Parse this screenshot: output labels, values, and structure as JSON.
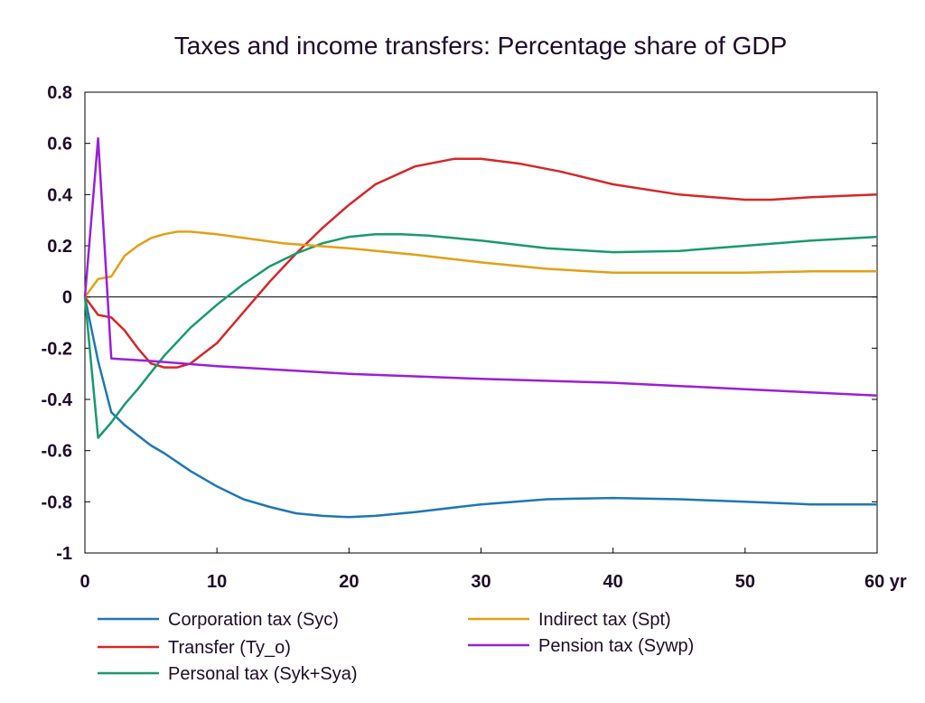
{
  "chart_data": {
    "type": "line",
    "title": "Taxes and income transfers: Percentage share of GDP",
    "xlabel": "",
    "ylabel": "",
    "xlim": [
      0,
      60
    ],
    "ylim": [
      -1,
      0.8
    ],
    "x_ticks": [
      0,
      10,
      20,
      30,
      40,
      50,
      60
    ],
    "x_tick_labels": [
      "0",
      "10",
      "20",
      "30",
      "40",
      "50",
      "60 yr"
    ],
    "y_ticks": [
      0.8,
      0.6,
      0.4,
      0.2,
      0,
      -0.2,
      -0.4,
      -0.6,
      -0.8,
      -1
    ],
    "y_tick_labels": [
      "0.8",
      "0.6",
      "0.4",
      "0.2",
      "0",
      "-0.2",
      "-0.4",
      "-0.6",
      "-0.8",
      "-1"
    ],
    "zero_line": true,
    "grid": false,
    "legend_position": "bottom",
    "series": [
      {
        "name": "Corporation tax (Syc)",
        "color": "#1f77b4",
        "x": [
          0,
          1,
          2,
          3,
          4,
          5,
          6,
          8,
          10,
          12,
          14,
          16,
          18,
          20,
          22,
          25,
          30,
          35,
          40,
          45,
          50,
          55,
          60
        ],
        "y": [
          0,
          -0.25,
          -0.45,
          -0.5,
          -0.54,
          -0.58,
          -0.61,
          -0.68,
          -0.74,
          -0.79,
          -0.82,
          -0.845,
          -0.855,
          -0.86,
          -0.855,
          -0.84,
          -0.81,
          -0.79,
          -0.785,
          -0.79,
          -0.8,
          -0.81,
          -0.81
        ]
      },
      {
        "name": "Transfer (Ty_o)",
        "color": "#d62728",
        "x": [
          0,
          1,
          2,
          3,
          4,
          5,
          6,
          7,
          8,
          10,
          12,
          14,
          16,
          18,
          20,
          22,
          25,
          28,
          30,
          33,
          36,
          40,
          45,
          50,
          52,
          55,
          60
        ],
        "y": [
          0,
          -0.07,
          -0.08,
          -0.13,
          -0.2,
          -0.26,
          -0.275,
          -0.275,
          -0.26,
          -0.18,
          -0.06,
          0.06,
          0.17,
          0.27,
          0.36,
          0.44,
          0.51,
          0.54,
          0.54,
          0.52,
          0.49,
          0.44,
          0.4,
          0.38,
          0.38,
          0.39,
          0.4
        ]
      },
      {
        "name": "Personal tax (Syk+Sya)",
        "color": "#1a9a6c",
        "x": [
          0,
          1,
          2,
          3,
          4,
          6,
          8,
          10,
          12,
          14,
          16,
          18,
          20,
          22,
          24,
          26,
          30,
          35,
          40,
          45,
          50,
          55,
          60
        ],
        "y": [
          0,
          -0.55,
          -0.49,
          -0.42,
          -0.36,
          -0.23,
          -0.12,
          -0.03,
          0.05,
          0.12,
          0.17,
          0.21,
          0.235,
          0.245,
          0.245,
          0.24,
          0.22,
          0.19,
          0.175,
          0.18,
          0.2,
          0.22,
          0.235
        ]
      },
      {
        "name": "Indirect tax (Spt)",
        "color": "#e3a016",
        "x": [
          0,
          1,
          2,
          3,
          4,
          5,
          6,
          7,
          8,
          10,
          15,
          20,
          25,
          30,
          35,
          40,
          45,
          50,
          55,
          60
        ],
        "y": [
          0,
          0.07,
          0.08,
          0.16,
          0.2,
          0.23,
          0.245,
          0.255,
          0.255,
          0.245,
          0.21,
          0.19,
          0.165,
          0.135,
          0.11,
          0.095,
          0.095,
          0.095,
          0.1,
          0.1
        ]
      },
      {
        "name": "Pension tax (Sywp)",
        "color": "#9b1fd6",
        "x": [
          0,
          1,
          2,
          5,
          10,
          20,
          30,
          40,
          50,
          60
        ],
        "y": [
          0,
          0.62,
          -0.24,
          -0.25,
          -0.27,
          -0.3,
          -0.32,
          -0.335,
          -0.36,
          -0.385
        ]
      }
    ]
  },
  "legend": {
    "items": [
      {
        "label": "Corporation tax (Syc)",
        "color": "#1f77b4"
      },
      {
        "label": "Indirect tax (Spt)",
        "color": "#e3a016"
      },
      {
        "label": "Transfer (Ty_o)",
        "color": "#d62728"
      },
      {
        "label": "Pension tax (Sywp)",
        "color": "#9b1fd6"
      },
      {
        "label": "Personal tax (Syk+Sya)",
        "color": "#1a9a6c"
      }
    ]
  }
}
